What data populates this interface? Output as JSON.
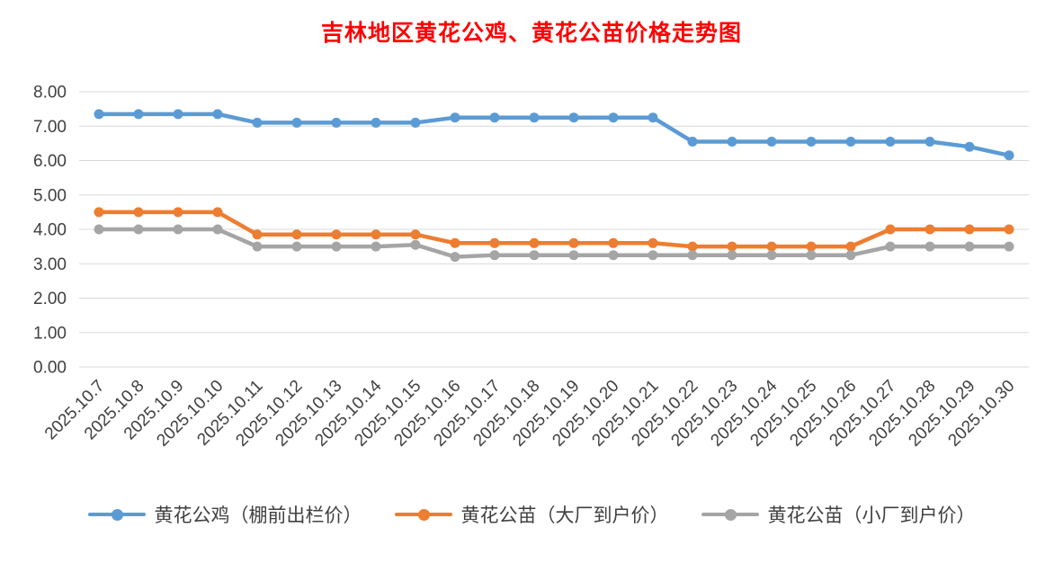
{
  "chart_data": {
    "type": "line",
    "title": "吉林地区黄花公鸡、黄花公苗价格走势图",
    "title_color": "#FF0000",
    "categories": [
      "2025.10.7",
      "2025.10.8",
      "2025.10.9",
      "2025.10.10",
      "2025.10.11",
      "2025.10.12",
      "2025.10.13",
      "2025.10.14",
      "2025.10.15",
      "2025.10.16",
      "2025.10.17",
      "2025.10.18",
      "2025.10.19",
      "2025.10.20",
      "2025.10.21",
      "2025.10.22",
      "2025.10.23",
      "2025.10.24",
      "2025.10.25",
      "2025.10.26",
      "2025.10.27",
      "2025.10.28",
      "2025.10.29",
      "2025.10.30"
    ],
    "series": [
      {
        "name": "黄花公鸡（棚前出栏价）",
        "color": "#5B9BD5",
        "values": [
          7.35,
          7.35,
          7.35,
          7.35,
          7.1,
          7.1,
          7.1,
          7.1,
          7.1,
          7.25,
          7.25,
          7.25,
          7.25,
          7.25,
          7.25,
          6.55,
          6.55,
          6.55,
          6.55,
          6.55,
          6.55,
          6.55,
          6.4,
          6.15
        ]
      },
      {
        "name": "黄花公苗（大厂到户价）",
        "color": "#ED7D31",
        "values": [
          4.5,
          4.5,
          4.5,
          4.5,
          3.85,
          3.85,
          3.85,
          3.85,
          3.85,
          3.6,
          3.6,
          3.6,
          3.6,
          3.6,
          3.6,
          3.5,
          3.5,
          3.5,
          3.5,
          3.5,
          4.0,
          4.0,
          4.0,
          4.0
        ]
      },
      {
        "name": "黄花公苗（小厂到户价）",
        "color": "#A5A5A5",
        "values": [
          4.0,
          4.0,
          4.0,
          4.0,
          3.5,
          3.5,
          3.5,
          3.5,
          3.55,
          3.2,
          3.25,
          3.25,
          3.25,
          3.25,
          3.25,
          3.25,
          3.25,
          3.25,
          3.25,
          3.25,
          3.5,
          3.5,
          3.5,
          3.5
        ]
      }
    ],
    "ylim": [
      0,
      8
    ],
    "ytick_step": 1,
    "ytick_labels": [
      "0.00",
      "1.00",
      "2.00",
      "3.00",
      "4.00",
      "5.00",
      "6.00",
      "7.00",
      "8.00"
    ],
    "grid": "horizontal",
    "gridline_color": "#D9D9D9",
    "axis_label_color": "#404040",
    "legend_position": "bottom"
  }
}
